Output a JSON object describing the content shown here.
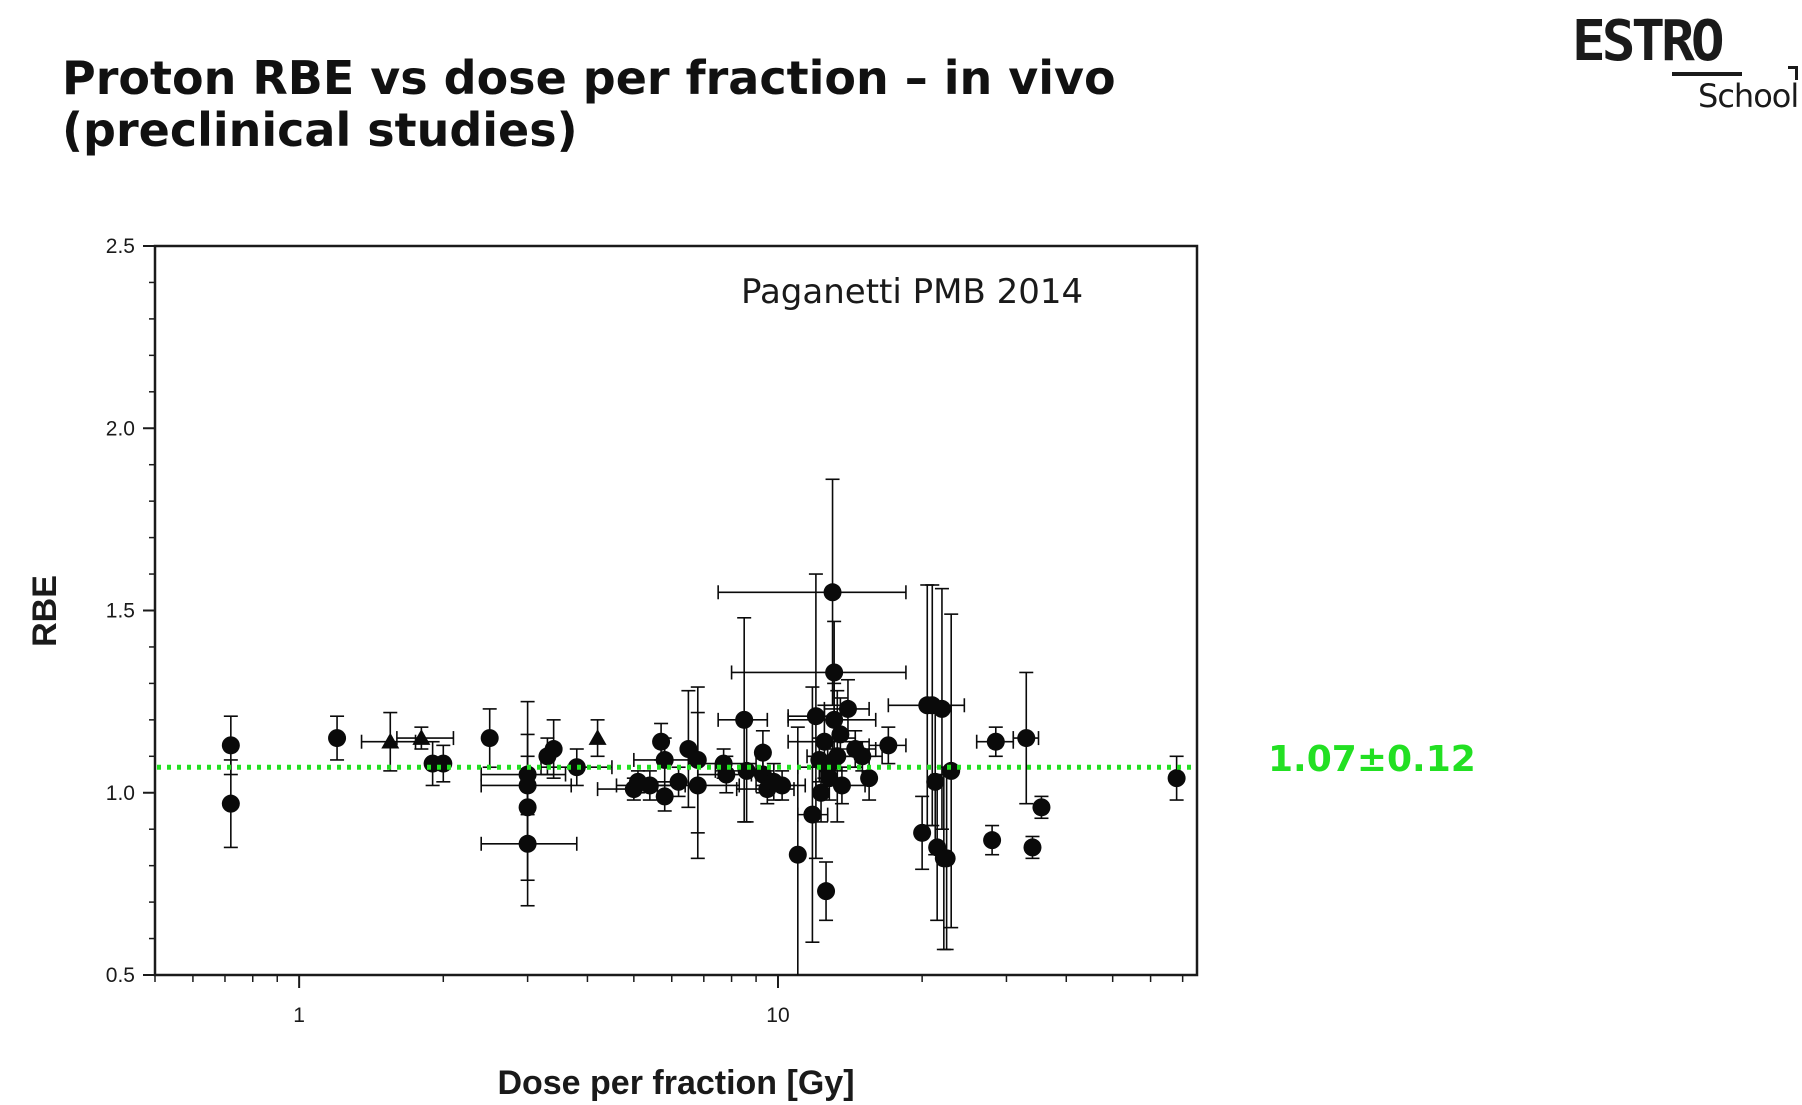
{
  "slide": {
    "title_line1": "Proton RBE vs dose per fraction – in vivo",
    "title_line2": "(preclinical studies)"
  },
  "logo": {
    "main": "ESTRO",
    "sub": "School"
  },
  "chart_data": {
    "type": "scatter",
    "title": "",
    "annotation": "Paganetti PMB 2014",
    "xlabel": "Dose per fraction [Gy]",
    "ylabel": "RBE",
    "x_scale": "log",
    "xlim": [
      0.5,
      75
    ],
    "ylim": [
      0.5,
      2.5
    ],
    "x_ticks": [
      1,
      10
    ],
    "x_tick_labels": [
      "1",
      "10"
    ],
    "y_ticks": [
      0.5,
      1.0,
      1.5,
      2.0,
      2.5
    ],
    "y_tick_labels": [
      "0.5",
      "1.0",
      "1.5",
      "2.0",
      "2.5"
    ],
    "grid": false,
    "reference_line": {
      "y": 1.07,
      "label": "1.07±0.12",
      "color": "#22e022",
      "style": "dotted"
    },
    "marker_color": "#0a0a0a",
    "points": [
      {
        "x": 0.72,
        "y": 1.13,
        "yerr": 0.08
      },
      {
        "x": 0.72,
        "y": 0.97,
        "yerr": 0.12
      },
      {
        "x": 1.2,
        "y": 1.15,
        "yerr": 0.06
      },
      {
        "x": 1.55,
        "y": 1.14,
        "xerr": [
          1.35,
          1.75
        ],
        "yerr": 0.08,
        "marker": "triangle"
      },
      {
        "x": 1.8,
        "y": 1.15,
        "xerr": [
          1.6,
          2.1
        ],
        "yerr": 0.03,
        "marker": "triangle"
      },
      {
        "x": 1.9,
        "y": 1.08,
        "yerr": 0.06
      },
      {
        "x": 2.0,
        "y": 1.08,
        "yerr": 0.05
      },
      {
        "x": 2.5,
        "y": 1.15,
        "yerr": 0.08
      },
      {
        "x": 3.0,
        "y": 1.05,
        "xerr": [
          2.4,
          3.6
        ],
        "yerr": 0.2
      },
      {
        "x": 3.0,
        "y": 1.02,
        "xerr": [
          2.4,
          3.7
        ],
        "yerr": 0.08
      },
      {
        "x": 3.0,
        "y": 0.96,
        "yerr": 0.2
      },
      {
        "x": 3.0,
        "y": 0.86,
        "xerr": [
          2.4,
          3.8
        ],
        "yerr": 0.17
      },
      {
        "x": 3.3,
        "y": 1.1,
        "yerr": 0.05
      },
      {
        "x": 3.4,
        "y": 1.12,
        "yerr": 0.08
      },
      {
        "x": 3.8,
        "y": 1.07,
        "xerr": [
          3.2,
          4.5
        ],
        "yerr": 0.05
      },
      {
        "x": 4.2,
        "y": 1.15,
        "yerr": 0.05,
        "marker": "triangle"
      },
      {
        "x": 5.0,
        "y": 1.01,
        "xerr": [
          4.2,
          5.6
        ],
        "yerr": 0.03
      },
      {
        "x": 5.1,
        "y": 1.03,
        "yerr": 0.03
      },
      {
        "x": 5.4,
        "y": 1.02,
        "xerr": [
          4.6,
          6.4
        ],
        "yerr": 0.04
      },
      {
        "x": 5.7,
        "y": 1.14,
        "yerr": 0.05
      },
      {
        "x": 5.8,
        "y": 1.09,
        "xerr": [
          5.0,
          6.8
        ],
        "yerr": 0.06
      },
      {
        "x": 5.8,
        "y": 0.99,
        "yerr": 0.04
      },
      {
        "x": 6.2,
        "y": 1.03,
        "yerr": 0.04
      },
      {
        "x": 6.5,
        "y": 1.12,
        "yerr": 0.16
      },
      {
        "x": 6.8,
        "y": 1.09,
        "yerr": 0.2
      },
      {
        "x": 6.8,
        "y": 1.02,
        "xerr": [
          5.5,
          8.3
        ],
        "yerr": 0.2
      },
      {
        "x": 7.7,
        "y": 1.08,
        "xerr": [
          6.5,
          9.0
        ],
        "yerr": 0.04
      },
      {
        "x": 7.8,
        "y": 1.05,
        "xerr": [
          6.8,
          8.8
        ],
        "yerr": 0.05
      },
      {
        "x": 8.5,
        "y": 1.2,
        "xerr": [
          7.5,
          9.5
        ],
        "yerr": 0.28
      },
      {
        "x": 8.6,
        "y": 1.06,
        "xerr": [
          7.4,
          9.8
        ],
        "yerr": 0.14
      },
      {
        "x": 9.3,
        "y": 1.11,
        "yerr": 0.06
      },
      {
        "x": 9.3,
        "y": 1.05,
        "yerr": 0.05
      },
      {
        "x": 9.5,
        "y": 1.01,
        "xerr": [
          8.2,
          10.8
        ],
        "yerr": 0.04
      },
      {
        "x": 9.8,
        "y": 1.03,
        "yerr": 0.05
      },
      {
        "x": 10.2,
        "y": 1.02,
        "xerr": [
          9.0,
          11.4
        ],
        "yerr": 0.04
      },
      {
        "x": 11.0,
        "y": 0.83,
        "yerr": 0.35
      },
      {
        "x": 11.8,
        "y": 0.94,
        "xerr": [
          11.0,
          12.7
        ],
        "yerr": 0.35
      },
      {
        "x": 12.0,
        "y": 1.21,
        "xerr": [
          10.5,
          13.5
        ],
        "yerr": 0.39
      },
      {
        "x": 12.2,
        "y": 1.09,
        "yerr": 0.06
      },
      {
        "x": 12.3,
        "y": 1.0,
        "yerr": 0.08
      },
      {
        "x": 12.5,
        "y": 1.14,
        "xerr": [
          10.5,
          14.5
        ],
        "yerr": 0.1
      },
      {
        "x": 12.6,
        "y": 0.73,
        "yerr": 0.08
      },
      {
        "x": 12.7,
        "y": 1.07,
        "xerr": [
          11.0,
          15.0
        ],
        "yerr": 0.05
      },
      {
        "x": 12.8,
        "y": 1.04,
        "yerr": 0.06
      },
      {
        "x": 13.0,
        "y": 1.55,
        "xerr": [
          7.5,
          18.5
        ],
        "yerr": 0.31
      },
      {
        "x": 13.1,
        "y": 1.33,
        "xerr": [
          8.0,
          18.5
        ],
        "yerr": 0.14
      },
      {
        "x": 13.1,
        "y": 1.2,
        "xerr": [
          10.5,
          16.0
        ],
        "yerr": 0.1
      },
      {
        "x": 13.3,
        "y": 1.1,
        "xerr": [
          11.5,
          15.0
        ],
        "yerr": 0.18
      },
      {
        "x": 13.5,
        "y": 1.16,
        "yerr": 0.1
      },
      {
        "x": 13.6,
        "y": 1.02,
        "xerr": [
          12.0,
          15.2
        ],
        "yerr": 0.05
      },
      {
        "x": 14.0,
        "y": 1.23,
        "xerr": [
          12.5,
          15.5
        ],
        "yerr": 0.08
      },
      {
        "x": 14.5,
        "y": 1.12,
        "xerr": [
          13.0,
          16.0
        ],
        "yerr": 0.05
      },
      {
        "x": 15.0,
        "y": 1.1,
        "xerr": [
          13.5,
          16.5
        ],
        "yerr": 0.04
      },
      {
        "x": 15.5,
        "y": 1.04,
        "yerr": 0.06
      },
      {
        "x": 17.0,
        "y": 1.13,
        "xerr": [
          15.5,
          18.5
        ],
        "yerr": 0.05
      },
      {
        "x": 20.0,
        "y": 0.89,
        "yerr": 0.1
      },
      {
        "x": 20.5,
        "y": 1.24,
        "xerr": [
          17.0,
          24.5
        ],
        "yerr": 0.33
      },
      {
        "x": 21.0,
        "y": 1.24,
        "yerr": 0.33
      },
      {
        "x": 21.3,
        "y": 1.03,
        "yerr": 0.2
      },
      {
        "x": 21.5,
        "y": 0.85,
        "yerr": 0.2
      },
      {
        "x": 22.0,
        "y": 1.23,
        "yerr": 0.33
      },
      {
        "x": 22.2,
        "y": 0.82,
        "yerr": 0.25
      },
      {
        "x": 22.5,
        "y": 0.82,
        "yerr": 0.25
      },
      {
        "x": 23.0,
        "y": 1.06,
        "yerr": 0.43
      },
      {
        "x": 28.0,
        "y": 0.87,
        "yerr": 0.04
      },
      {
        "x": 28.5,
        "y": 1.14,
        "xerr": [
          26.0,
          31.0
        ],
        "yerr": 0.04
      },
      {
        "x": 33.0,
        "y": 1.15,
        "xerr": [
          31.0,
          35.0
        ],
        "yerr": 0.18
      },
      {
        "x": 34.0,
        "y": 0.85,
        "yerr": 0.03
      },
      {
        "x": 35.5,
        "y": 0.96,
        "yerr": 0.03
      },
      {
        "x": 68.0,
        "y": 1.04,
        "yerr": 0.06
      }
    ]
  }
}
